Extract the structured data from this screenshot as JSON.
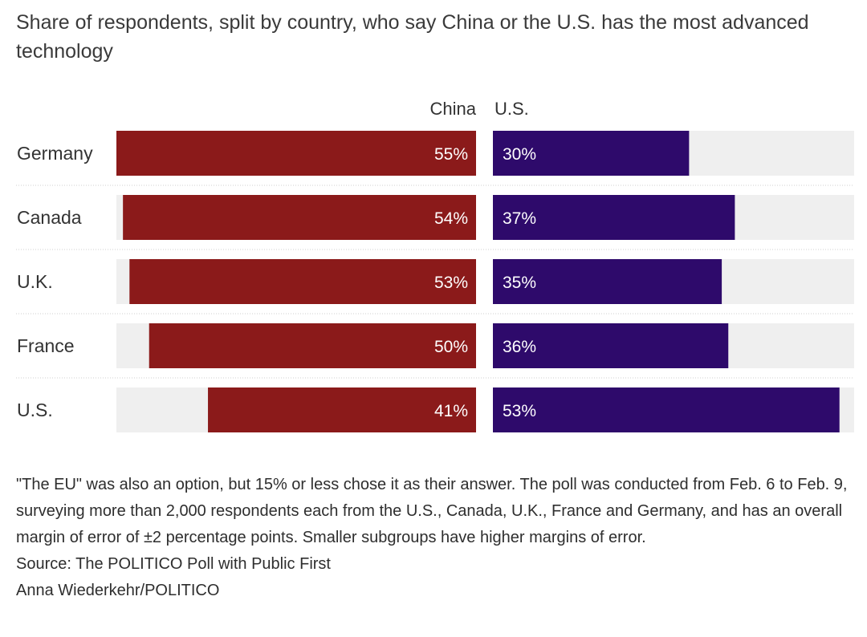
{
  "title": "Share of respondents, split by country, who say China or the U.S. has the most advanced technology",
  "chart_data": {
    "type": "bar",
    "orientation": "horizontal-diverging",
    "categories": [
      "Germany",
      "Canada",
      "U.K.",
      "France",
      "U.S."
    ],
    "series": [
      {
        "name": "China",
        "values": [
          55,
          54,
          53,
          50,
          41
        ],
        "labels": [
          "55%",
          "54%",
          "53%",
          "50%",
          "41%"
        ],
        "color": "#8b1a1a"
      },
      {
        "name": "U.S.",
        "values": [
          30,
          37,
          35,
          36,
          53
        ],
        "labels": [
          "30%",
          "37%",
          "35%",
          "36%",
          "53%"
        ],
        "color": "#2e0a6b"
      }
    ],
    "xlim": [
      0,
      55
    ],
    "track_color": "#efefef",
    "separator_color": "#cfcfcf"
  },
  "notes": {
    "text": "\"The EU\" was also an option, but 15% or less chose it as their answer. The poll was conducted from Feb. 6 to Feb. 9, surveying more than 2,000 respondents each from the U.S., Canada, U.K., France and Germany, and has an overall margin of error of ±2 percentage points. Smaller subgroups have higher margins of error.",
    "source": "Source: The POLITICO Poll with Public First",
    "credit": "Anna Wiederkehr/POLITICO"
  }
}
